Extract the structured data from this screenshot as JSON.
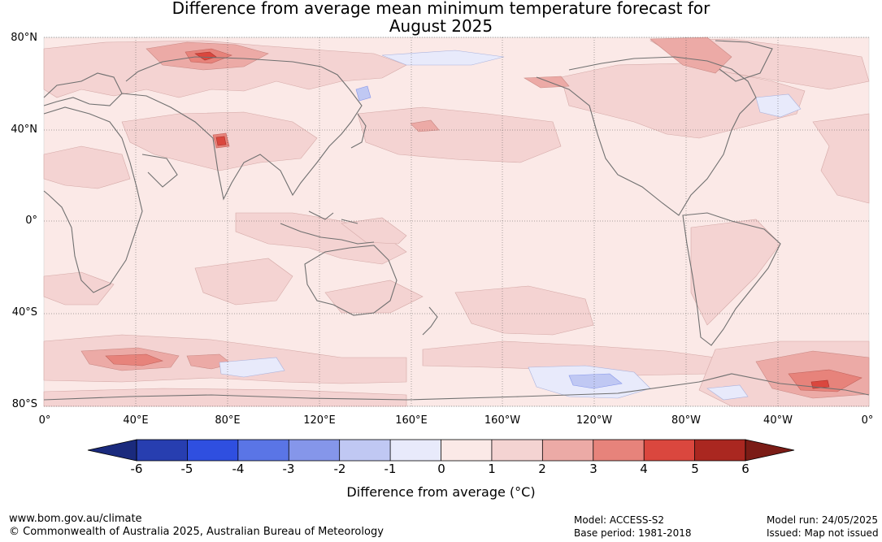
{
  "title": {
    "line1": "Difference from average mean minimum temperature forecast for",
    "line2": "August 2025"
  },
  "map": {
    "lat_labels": [
      "80°N",
      "40°N",
      "0°",
      "40°S",
      "80°S"
    ],
    "lon_labels": [
      "0°",
      "40°E",
      "80°E",
      "120°E",
      "160°E",
      "160°W",
      "120°W",
      "80°W",
      "40°W",
      "0°"
    ],
    "background_color": "#fbe9e7",
    "coastline_color": "#707070",
    "anomaly_regions": [
      {
        "name": "siberia-north",
        "value_band": "2-3"
      },
      {
        "name": "tibet-plateau",
        "value_band": "4-5"
      },
      {
        "name": "southern-ocean-indian",
        "value_band": "3-4"
      },
      {
        "name": "weddell-sea",
        "value_band": "3-5"
      },
      {
        "name": "north-pacific-east",
        "value_band": "1-2"
      },
      {
        "name": "japan-sea",
        "value_band": "-2--1"
      },
      {
        "name": "ross-sea",
        "value_band": "-1-0"
      }
    ]
  },
  "colorbar": {
    "ticks": [
      "-6",
      "-5",
      "-4",
      "-3",
      "-2",
      "-1",
      "0",
      "1",
      "2",
      "3",
      "4",
      "5",
      "6"
    ],
    "colors": [
      "#273eb0",
      "#2f4fe0",
      "#5a75e6",
      "#8596ea",
      "#c0c8f3",
      "#e8eafb",
      "#fbe9e7",
      "#f4d3d2",
      "#ecaaa6",
      "#e7837b",
      "#da473e",
      "#aa2720"
    ],
    "under_color": "#1a2a7d",
    "over_color": "#7b1c16",
    "label": "Difference from average (",
    "label_unit": "°C",
    "label_close": ")"
  },
  "footer": {
    "url": "www.bom.gov.au/climate",
    "copyright": "© Commonwealth of Australia 2025, Australian Bureau of Meteorology",
    "model": "Model: ACCESS-S2",
    "base_period": "Base period: 1981-2018",
    "model_run": "Model run: 24/05/2025",
    "issued": "Issued: Map not issued"
  }
}
